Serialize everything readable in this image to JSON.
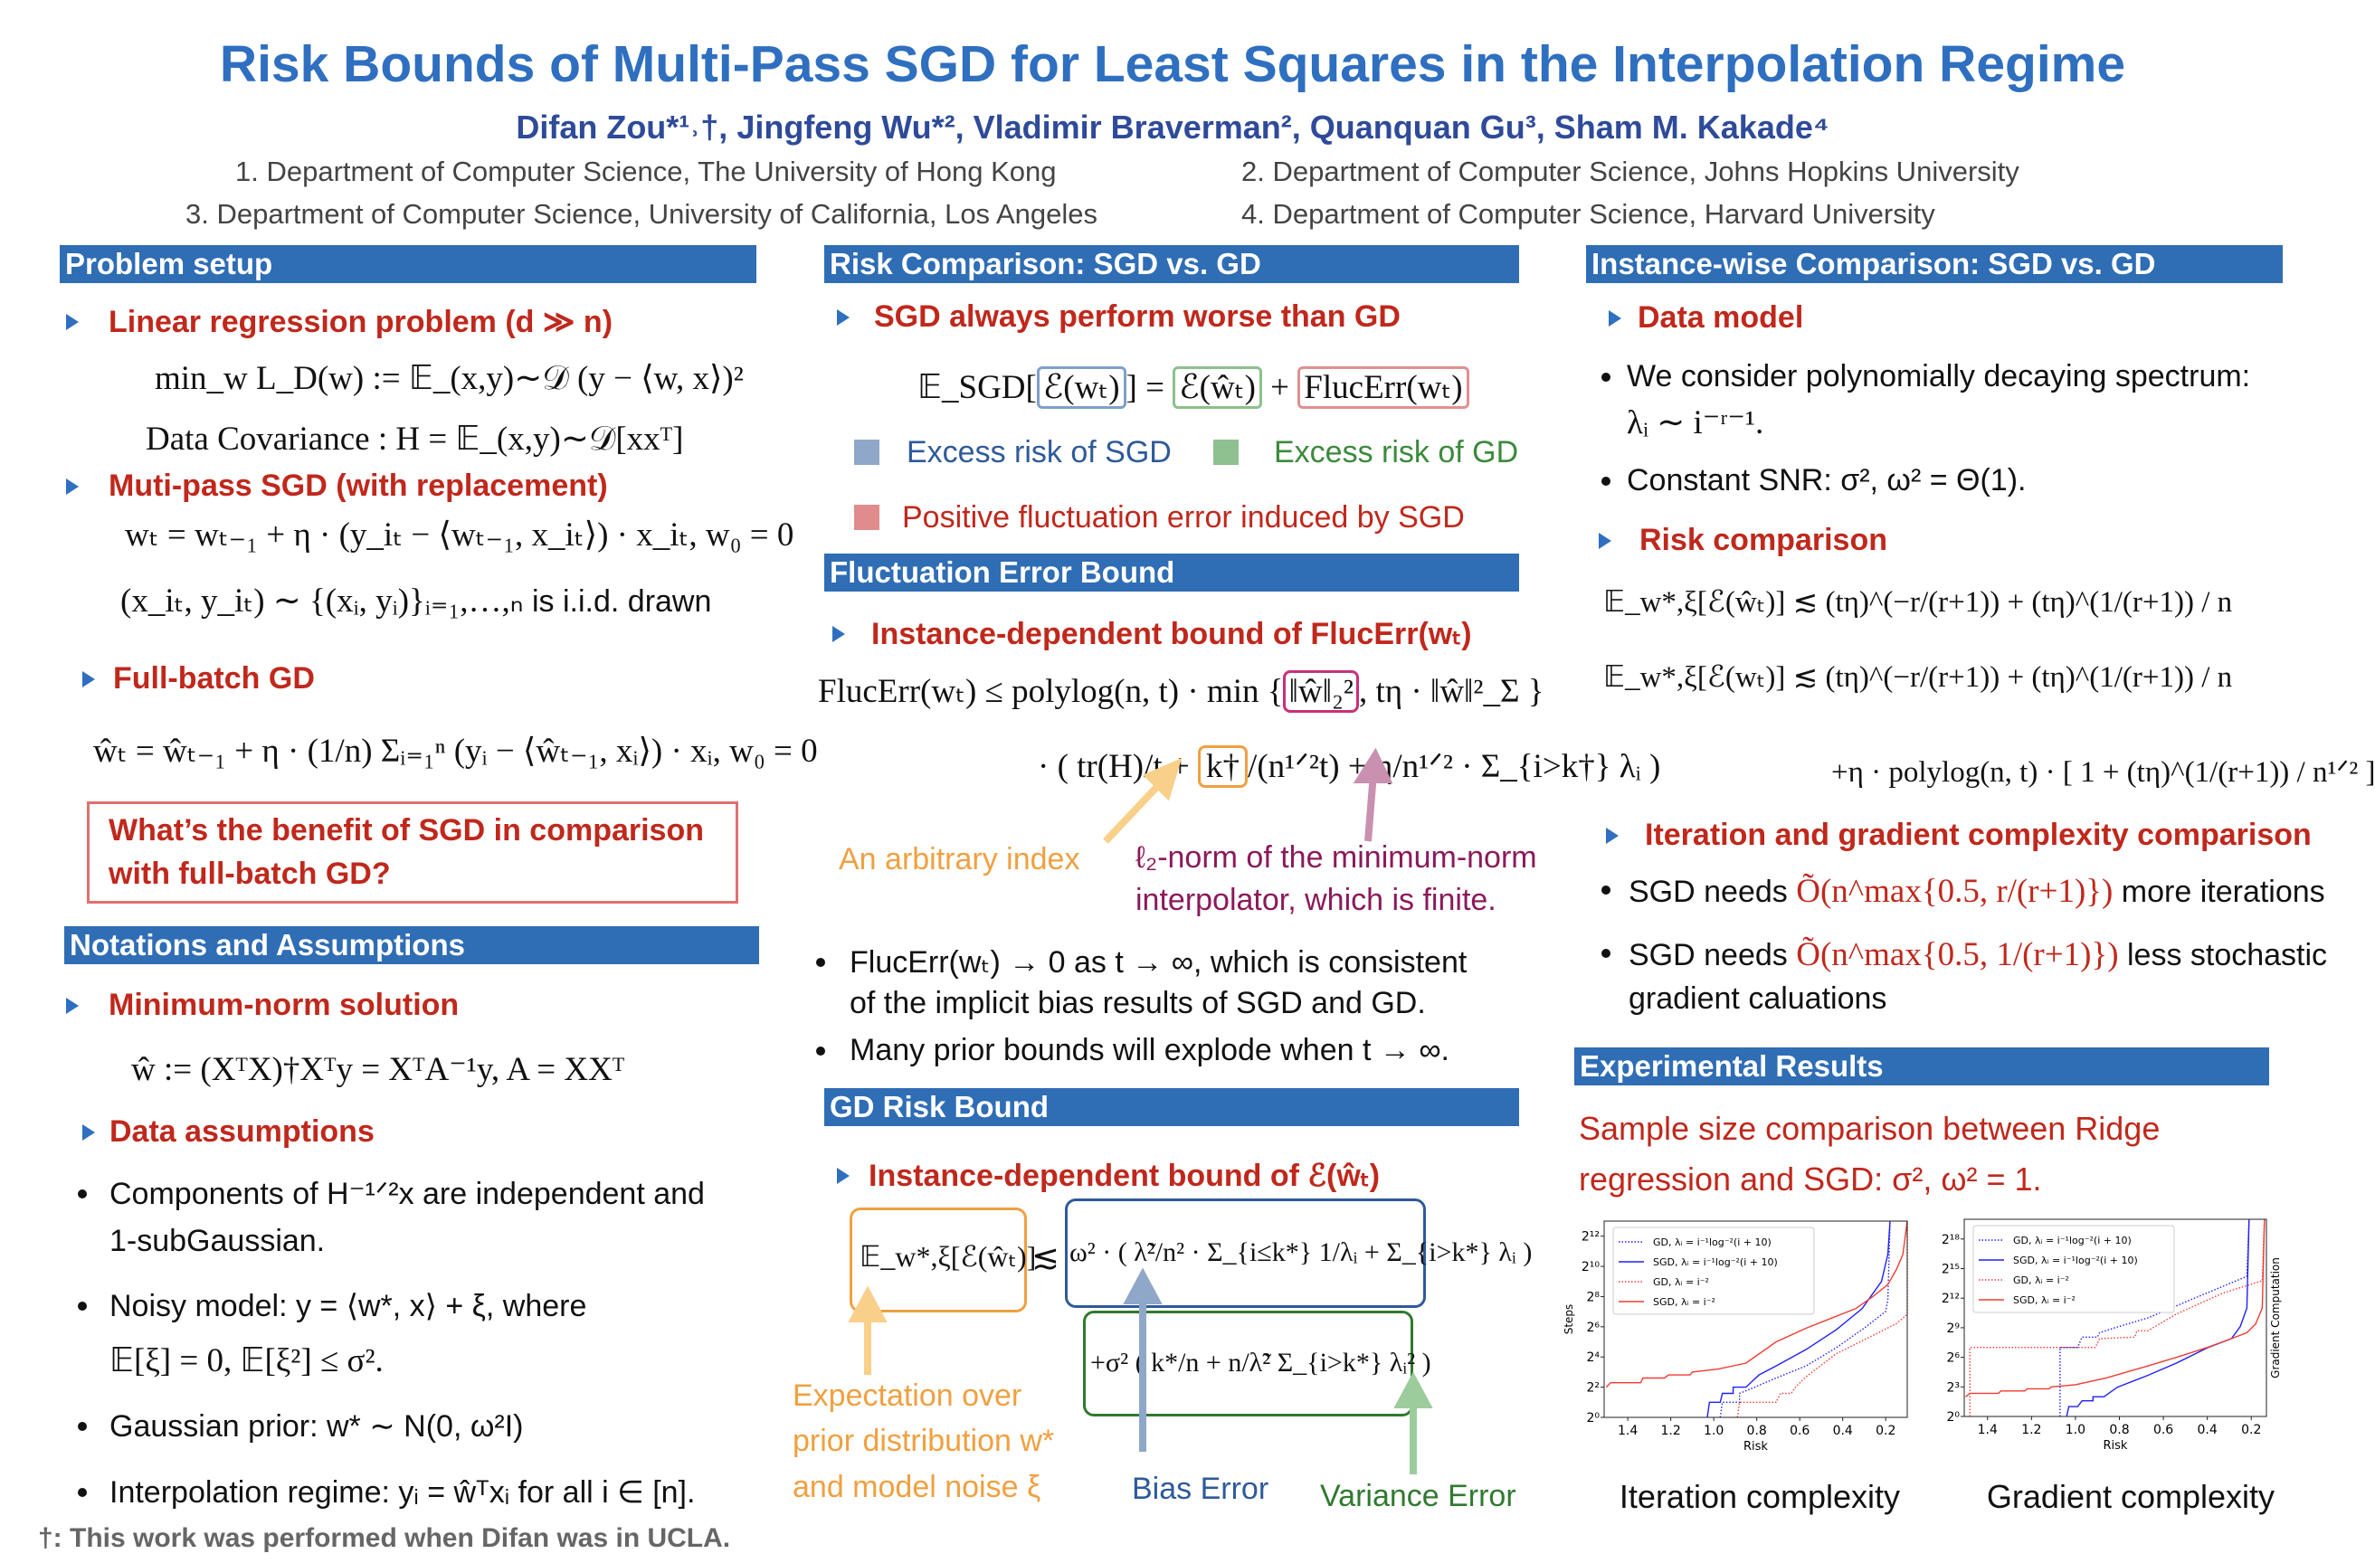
{
  "header": {
    "title": "Risk Bounds of Multi-Pass SGD for Least Squares in the Interpolation Regime",
    "authors": "Difan Zou*¹˒†, Jingfeng Wu*², Vladimir Braverman², Quanquan Gu³, Sham M. Kakade⁴",
    "affiliations": [
      "1. Department of Computer Science, The University of Hong Kong",
      "2. Department of Computer Science, Johns Hopkins University",
      "3. Department of Computer Science, University of California, Los Angeles",
      "4. Department of Computer Science, Harvard University"
    ]
  },
  "colors": {
    "title": "#2f6fc0",
    "header_bg": "#2f6db5",
    "bullet_red": "#c0281c",
    "orange": "#f0a040",
    "purple": "#8b1a5a",
    "blue_text": "#2e5a9a",
    "green_text": "#3b8a3b"
  },
  "problem_setup": {
    "header": "Problem setup",
    "linreg": "Linear regression problem (d ≫ n)",
    "objective": "min_w L_D(w) := 𝔼_(x,y)∼𝒟 (y − ⟨w, x⟩)²",
    "covariance": "Data Covariance : H = 𝔼_(x,y)∼𝒟[xxᵀ]",
    "sgd": "Muti-pass SGD (with replacement)",
    "sgd_update": "wₜ = wₜ₋₁ + η · (y_iₜ − ⟨wₜ₋₁, x_iₜ⟩) · x_iₜ,  w₀ = 0",
    "sgd_sample_math": "(x_iₜ, y_iₜ) ∼ {(xᵢ, yᵢ)}ᵢ₌₁,…,ₙ",
    "sgd_sample_text": " is i.i.d. drawn",
    "gd": "Full-batch GD",
    "gd_update": "ŵₜ = ŵₜ₋₁ + η · (1/n) Σᵢ₌₁ⁿ (yᵢ − ⟨ŵₜ₋₁, xᵢ⟩) · xᵢ,  w₀ = 0",
    "question": [
      "What’s the benefit of SGD in comparison",
      "with full-batch GD?"
    ]
  },
  "notations": {
    "header": "Notations and Assumptions",
    "minnorm": "Minimum-norm solution",
    "minnorm_formula": "ŵ := (XᵀX)†Xᵀy = XᵀA⁻¹y,  A = XXᵀ",
    "data_assumptions": "Data assumptions",
    "items": [
      "Components of H⁻¹ᐟ²x are independent and",
      "1-subGaussian.",
      "Noisy model: y = ⟨w*, x⟩ + ξ, where",
      "𝔼[ξ] = 0, 𝔼[ξ²] ≤ σ².",
      "Gaussian prior: w* ∼ N(0, ω²I)",
      "Interpolation regime: yᵢ = ŵᵀxᵢ for all i ∈ [n]."
    ]
  },
  "footnote": "†: This work was performed when Difan was in UCLA.",
  "risk_comparison": {
    "header": "Risk Comparison: SGD vs. GD",
    "bullet": "SGD always perform worse than GD",
    "eq_lhs": "𝔼_SGD[",
    "eq_sgd": "ℰ(wₜ)",
    "eq_mid": "] = ",
    "eq_gd": "ℰ(ŵₜ)",
    "eq_plus": " + ",
    "eq_fluc": "FlucErr(wₜ)",
    "legend_sgd": "Excess risk of SGD",
    "legend_gd": "Excess risk of GD",
    "legend_fluc": "Positive fluctuation error induced by SGD"
  },
  "fluctuation": {
    "header": "Fluctuation Error Bound",
    "bullet": "Instance-dependent bound of FlucErr(wₜ)",
    "line1_a": "FlucErr(wₜ) ≤ polylog(n, t) · min {",
    "line1_box": "‖ŵ‖₂²",
    "line1_b": ", tη · ‖ŵ‖²_Σ }",
    "line2_a": "· ( tr(H)/t + ",
    "line2_box": "k†",
    "line2_b": "/(n¹ᐟ²t) + η/n¹ᐟ² · Σ_{i>k†} λᵢ )",
    "note_index": "An arbitrary index",
    "note_norm": [
      "ℓ₂-norm of the minimum-norm",
      "interpolator, which is finite."
    ],
    "points": [
      "FlucErr(wₜ) → 0 as t → ∞, which is consistent",
      "of the implicit bias results of SGD and GD.",
      "Many prior bounds will explode when t → ∞."
    ]
  },
  "gd_risk": {
    "header": "GD Risk Bound",
    "bullet": "Instance-dependent bound of ℰ(ŵₜ)",
    "lhs": "𝔼_w*,ξ[ℰ(ŵₜ)]",
    "rel": "≲",
    "bias": "ω² · ( λ̃²/n² · Σ_{i≤k*} 1/λᵢ + Σ_{i>k*} λᵢ )",
    "variance": "+σ² ( k*/n + n/λ̃² Σ_{i>k*} λᵢ² )",
    "note_expectation": [
      "Expectation over",
      "prior distribution w*",
      "and model noise ξ"
    ],
    "note_bias": "Bias Error",
    "note_variance": "Variance Error"
  },
  "instance": {
    "header": "Instance-wise Comparison: SGD vs. GD",
    "data_model": "Data model",
    "spectrum": [
      "We consider polynomially decaying spectrum:",
      "λᵢ ∼ i⁻ʳ⁻¹."
    ],
    "snr": "Constant SNR: σ², ω² = Θ(1).",
    "risk_comparison": "Risk comparison",
    "risk_gd": "𝔼_w*,ξ[ℰ(ŵₜ)] ≲ (tη)^(−r/(r+1)) + (tη)^(1/(r+1)) / n",
    "risk_sgd": "𝔼_w*,ξ[ℰ(wₜ)] ≲ (tη)^(−r/(r+1)) + (tη)^(1/(r+1)) / n",
    "risk_sgd_extra": "+η · polylog(n, t) · [ 1 + (tη)^(1/(r+1)) / n¹ᐟ² ]",
    "complexity": "Iteration and gradient complexity comparison",
    "iter_a": "SGD needs ",
    "iter_b": "Õ(n^max{0.5, r/(r+1)})",
    "iter_c": " more iterations",
    "grad_a": "SGD needs ",
    "grad_b": "Õ(n^max{0.5, 1/(r+1)})",
    "grad_c": " less stochastic",
    "grad_d": "gradient caluations"
  },
  "experiments": {
    "header": "Experimental Results",
    "desc": [
      "Sample size comparison between Ridge",
      "regression and SGD: σ², ω² = 1."
    ],
    "captions": [
      "Iteration complexity",
      "Gradient complexity"
    ]
  },
  "chart_data": [
    {
      "type": "line",
      "title": "",
      "xlabel": "Risk",
      "ylabel": "Steps",
      "xlim": [
        1.51,
        0.1
      ],
      "ylim": [
        1,
        8192
      ],
      "yscale": "log2",
      "x_reversed": true,
      "grid": false,
      "legend": "top-left",
      "xticks": [
        1.4,
        1.2,
        1.0,
        0.8,
        0.6,
        0.4,
        0.2
      ],
      "xtick_labels": [
        "1.4",
        "1.2",
        "1.0",
        "0.8",
        "0.6",
        "0.4",
        "0.2"
      ],
      "yticks": [
        1,
        4,
        16,
        64,
        256,
        1024,
        4096
      ],
      "ytick_labels": [
        "2⁰",
        "2²",
        "2⁴",
        "2⁶",
        "2⁸",
        "2¹⁰",
        "2¹²"
      ],
      "series": [
        {
          "name": "GD, λᵢ = i⁻¹log⁻²(i + 10)",
          "color": "#1f1fff",
          "style": "dotted",
          "x": [
            0.97,
            0.96,
            0.88,
            0.88,
            0.81,
            0.71,
            0.57,
            0.43,
            0.29,
            0.2,
            0.19,
            0.18
          ],
          "y": [
            1,
            2,
            2,
            3,
            4,
            6.1,
            10.6,
            24.5,
            65,
            130,
            228,
            8192
          ]
        },
        {
          "name": "SGD, λᵢ = i⁻¹log⁻²(i + 10)",
          "color": "#1f1fff",
          "style": "solid",
          "x": [
            1.03,
            1.02,
            0.97,
            0.96,
            0.91,
            0.91,
            0.85,
            0.79,
            0.71,
            0.57,
            0.43,
            0.31,
            0.22,
            0.19,
            0.18
          ],
          "y": [
            1,
            2,
            2,
            3,
            3,
            4,
            4,
            7,
            10.6,
            22.6,
            56,
            147,
            512,
            1783,
            8192
          ]
        },
        {
          "name": "GD, λᵢ = i⁻²",
          "color": "#f03c32",
          "style": "dotted",
          "x": [
            0.89,
            0.88,
            0.71,
            0.69,
            0.64,
            0.62,
            0.57,
            0.43,
            0.29,
            0.15,
            0.1,
            0.1
          ],
          "y": [
            1,
            2,
            2,
            3,
            3,
            4,
            6.5,
            18.6,
            37,
            74,
            113,
            8192
          ]
        },
        {
          "name": "SGD, λᵢ = i⁻²",
          "color": "#f03c32",
          "style": "solid",
          "x": [
            1.5,
            1.48,
            1.34,
            1.33,
            1.23,
            1.21,
            1.11,
            1.1,
            0.98,
            0.85,
            0.71,
            0.57,
            0.43,
            0.34,
            0.26,
            0.19,
            0.15,
            0.12,
            0.1
          ],
          "y": [
            4,
            4.9,
            4.9,
            6.1,
            6.1,
            7,
            7,
            8,
            9.2,
            12.1,
            32,
            60,
            104,
            147,
            256,
            446,
            891,
            1783,
            8192
          ]
        }
      ]
    },
    {
      "type": "line",
      "title": "",
      "xlabel": "Risk",
      "ylabel": "Gradient Computation",
      "xlim": [
        1.506,
        0.131
      ],
      "ylim": [
        1,
        1048576
      ],
      "yscale": "log2",
      "x_reversed": true,
      "grid": false,
      "legend": "top-left",
      "xticks": [
        1.4,
        1.2,
        1.0,
        0.8,
        0.6,
        0.4,
        0.2
      ],
      "xtick_labels": [
        "1.4",
        "1.2",
        "1.0",
        "0.8",
        "0.6",
        "0.4",
        "0.2"
      ],
      "yticks": [
        1,
        8,
        64,
        512,
        4096,
        32768,
        262144
      ],
      "ytick_labels": [
        "2⁰",
        "2³",
        "2⁶",
        "2⁹",
        "2¹²",
        "2¹⁵",
        "2¹⁸"
      ],
      "series": [
        {
          "name": "GD, λᵢ = i⁻¹log⁻²(i + 10)",
          "color": "#1f1fff",
          "style": "dotted",
          "x": [
            1.07,
            1.07,
            0.99,
            0.97,
            0.9,
            0.89,
            0.82,
            0.67,
            0.47,
            0.22,
            0.21
          ],
          "y": [
            1,
            128,
            128,
            265,
            265,
            362,
            512,
            1024,
            3800,
            19000,
            1048576
          ]
        },
        {
          "name": "SGD, λᵢ = i⁻¹log⁻²(i + 10)",
          "color": "#1f1fff",
          "style": "solid",
          "x": [
            1.04,
            1.03,
            0.99,
            0.97,
            0.92,
            0.92,
            0.87,
            0.81,
            0.67,
            0.54,
            0.4,
            0.29,
            0.25,
            0.22,
            0.21
          ],
          "y": [
            1,
            2,
            2,
            3,
            3,
            4,
            4,
            7.8,
            18,
            43,
            125,
            239,
            560,
            2048,
            1048576
          ]
        },
        {
          "name": "GD, λᵢ = i⁻²",
          "color": "#f03c32",
          "style": "dotted",
          "x": [
            1.48,
            1.48,
            0.91,
            0.89,
            0.73,
            0.72,
            0.67,
            0.54,
            0.33,
            0.15,
            0.14
          ],
          "y": [
            1,
            128,
            128,
            239,
            265,
            415,
            415,
            1351,
            5800,
            14000,
            1048576
          ]
        },
        {
          "name": "SGD, λᵢ = i⁻²",
          "color": "#f03c32",
          "style": "solid",
          "x": [
            1.5,
            1.48,
            1.35,
            1.34,
            1.23,
            1.22,
            1.12,
            1.11,
            1.0,
            0.86,
            0.67,
            0.54,
            0.4,
            0.29,
            0.22,
            0.18,
            0.15,
            0.14
          ],
          "y": [
            4,
            5.1,
            5.1,
            6,
            6,
            7,
            7,
            8,
            9.3,
            15,
            35,
            64,
            128,
            239,
            362,
            675,
            2048,
            1048576
          ]
        }
      ]
    }
  ]
}
